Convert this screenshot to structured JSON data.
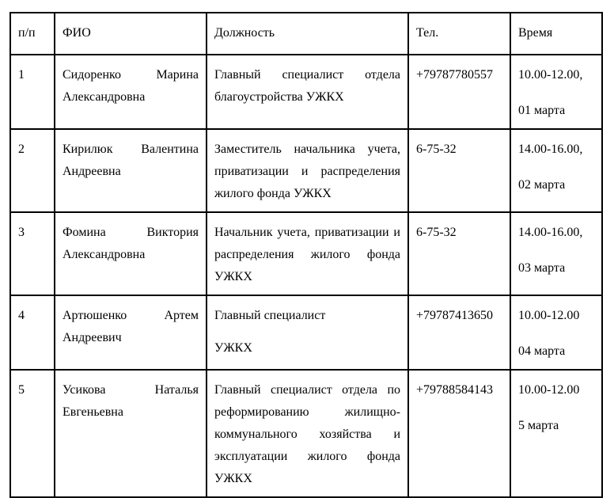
{
  "table": {
    "headers": {
      "num": "п/п",
      "name": "ФИО",
      "position": "Должность",
      "phone": "Тел.",
      "time": "Время"
    },
    "rows": [
      {
        "num": "1",
        "name": "Сидоренко Марина Александровна",
        "position": "Главный специалист отдела благоустройства УЖКХ",
        "phone": "+79787780557",
        "time": "10.00-12.00,",
        "date": "01 марта"
      },
      {
        "num": "2",
        "name": "Кирилюк Валентина Андреевна",
        "position": "Заместитель начальника учета, приватизации и распределения жилого фонда УЖКХ",
        "phone": "6-75-32",
        "time": "14.00-16.00,",
        "date": "02 марта"
      },
      {
        "num": "3",
        "name": "Фомина Виктория Александровна",
        "position": "Начальник учета, приватизации и распределения жилого фонда УЖКХ",
        "phone": "6-75-32",
        "time": "14.00-16.00,",
        "date": "03 марта"
      },
      {
        "num": "4",
        "name": "Артюшенко Артем Андреевич",
        "position": "Главный специалист",
        "position2": "УЖКХ",
        "phone": "+79787413650",
        "time": "10.00-12.00",
        "date": "04 марта"
      },
      {
        "num": "5",
        "name": "Усикова Наталья Евгеньевна",
        "position": "Главный специалист отдела по реформированию жилищно-коммунального хозяйства и эксплуатации жилого фонда УЖКХ",
        "phone": "+79788584143",
        "time": "10.00-12.00",
        "date": "5 марта"
      }
    ],
    "colors": {
      "border": "#000000",
      "text": "#000000",
      "background": "#ffffff"
    }
  }
}
